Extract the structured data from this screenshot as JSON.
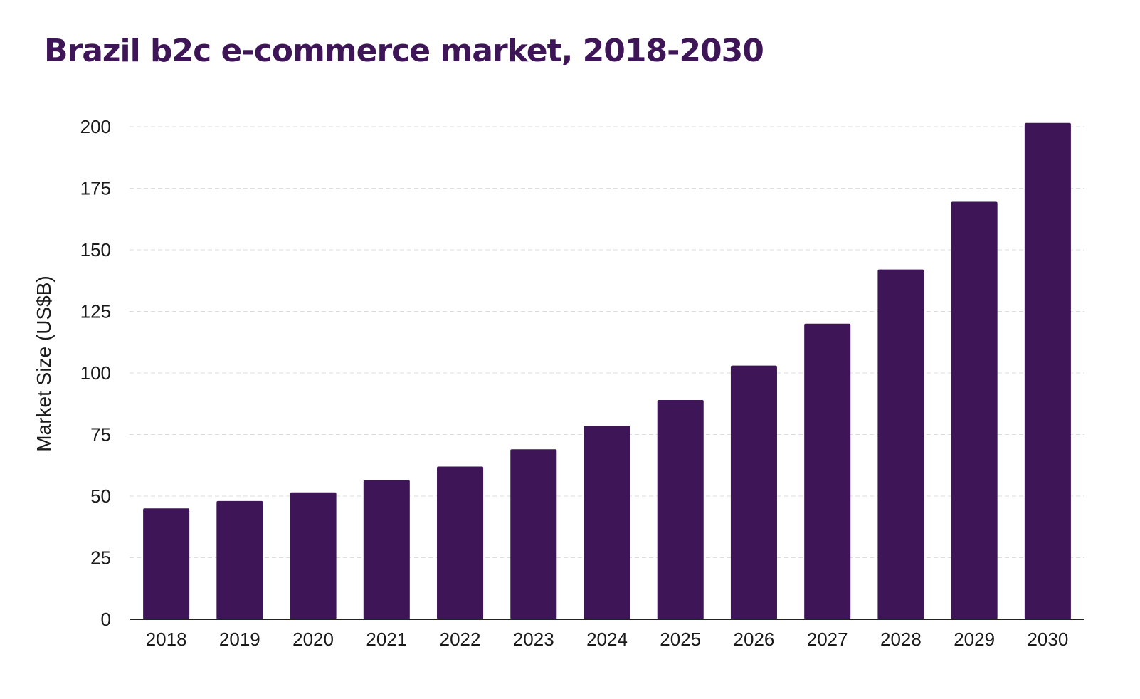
{
  "chart_data": {
    "type": "bar",
    "title": "Brazil b2c e-commerce market, 2018-2030",
    "xlabel": "",
    "ylabel": "Market Size (US$B)",
    "categories": [
      "2018",
      "2019",
      "2020",
      "2021",
      "2022",
      "2023",
      "2024",
      "2025",
      "2026",
      "2027",
      "2028",
      "2029",
      "2030"
    ],
    "values": [
      45,
      48,
      51.5,
      56.5,
      62,
      69,
      78.5,
      89,
      103,
      120,
      142,
      169.5,
      201.5
    ],
    "ylim": [
      0,
      200
    ],
    "yticks": [
      "0",
      "25",
      "50",
      "75",
      "100",
      "125",
      "150",
      "175",
      "200"
    ],
    "grid": true,
    "bar_color": "#3e1657",
    "title_color": "#3e1657"
  }
}
